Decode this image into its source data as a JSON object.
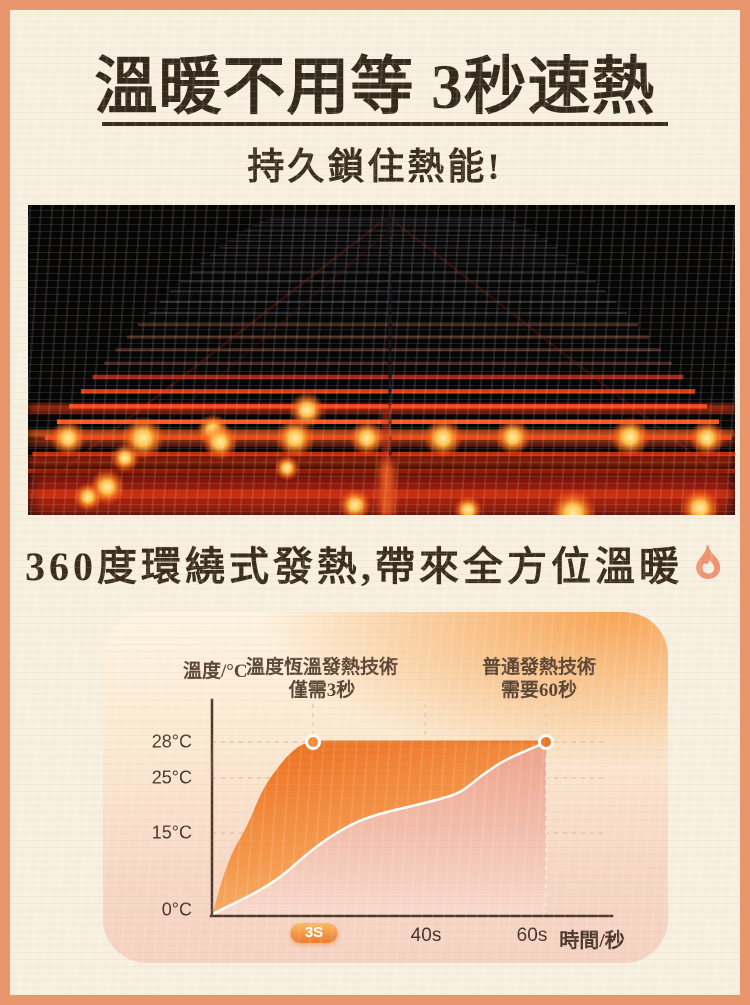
{
  "header": {
    "title": "溫暖不用等 3秒速熱",
    "subtitle": "持久鎖住熱能!"
  },
  "feature": {
    "text": "360度環繞式發熱,帶來全方位溫暖"
  },
  "colors": {
    "frame": "#e9966f",
    "background": "#f7f0e0",
    "title_text": "#33291d",
    "accent_orange": "#f08030",
    "curve_fill_pink": "#f0a78f",
    "flame_icon": "#ef9472"
  },
  "chart_data": {
    "type": "area",
    "ylabel": "溫度/°C",
    "xlabel": "時間/秒",
    "y_ticks": [
      "28°C",
      "25°C",
      "15°C",
      "0°C"
    ],
    "x_ticks": [
      "3S",
      "40s",
      "60s"
    ],
    "x_highlighted_tick": "3S",
    "ylim": [
      0,
      28
    ],
    "x_range_seconds": [
      0,
      60
    ],
    "grid": "dashed",
    "legend_position": "top",
    "series": [
      {
        "name": "溫度恆溫發熱技術",
        "subtitle": "僅需3秒",
        "color": "#f08030",
        "points_time_temp": [
          [
            0,
            0
          ],
          [
            1,
            12
          ],
          [
            2,
            22
          ],
          [
            3,
            28
          ],
          [
            40,
            28
          ],
          [
            60,
            28
          ]
        ]
      },
      {
        "name": "普通發熱技術",
        "subtitle": "需要60秒",
        "color": "#ffffff",
        "fill": "#f0a78f",
        "points_time_temp": [
          [
            0,
            0
          ],
          [
            5,
            4
          ],
          [
            10,
            8
          ],
          [
            15,
            12
          ],
          [
            20,
            15
          ],
          [
            25,
            17
          ],
          [
            30,
            18
          ],
          [
            40,
            19
          ],
          [
            50,
            24
          ],
          [
            60,
            28
          ]
        ]
      }
    ],
    "markers": [
      {
        "time": "3S",
        "temp": "28°C"
      },
      {
        "time": "60s",
        "temp": "28°C"
      }
    ]
  }
}
